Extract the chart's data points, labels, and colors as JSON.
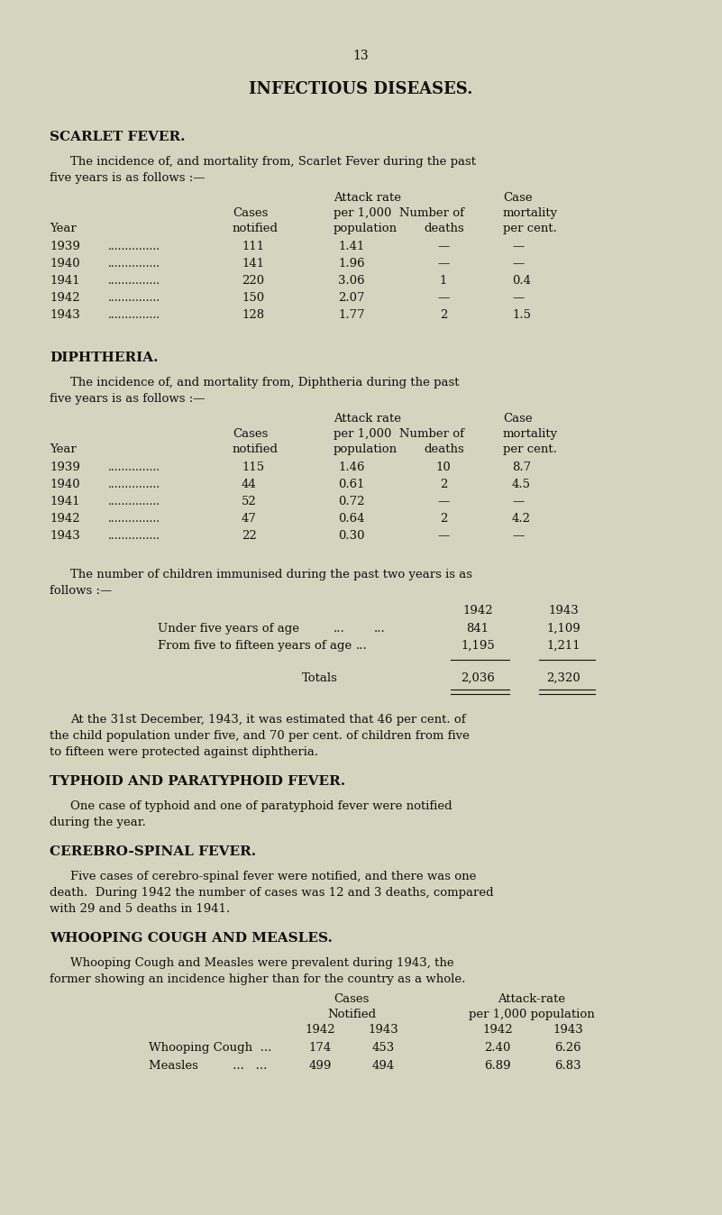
{
  "bg_color": "#d4d5be",
  "text_color": "#111111",
  "page_number": "13",
  "main_title": "INFECTIOUS DISEASES.",
  "scarlet_rows": [
    [
      "1939",
      "1.41",
      "—",
      "—"
    ],
    [
      "1940",
      "1.96",
      "—",
      "—"
    ],
    [
      "1941",
      "3.06",
      "1",
      "0.4"
    ],
    [
      "1942",
      "2.07",
      "—",
      "—"
    ],
    [
      "1943",
      "1.77",
      "2",
      "1.5"
    ]
  ],
  "scarlet_cases": [
    "111",
    "141",
    "220",
    "150",
    "128"
  ],
  "diph_rows": [
    [
      "1939",
      "1.46",
      "10",
      "8.7"
    ],
    [
      "1940",
      "0.61",
      "2",
      "4.5"
    ],
    [
      "1941",
      "0.72",
      "—",
      "—"
    ],
    [
      "1942",
      "0.64",
      "2",
      "4.2"
    ],
    [
      "1943",
      "0.30",
      "—",
      "—"
    ]
  ],
  "diph_cases": [
    "115",
    "44",
    "52",
    "47",
    "22"
  ]
}
